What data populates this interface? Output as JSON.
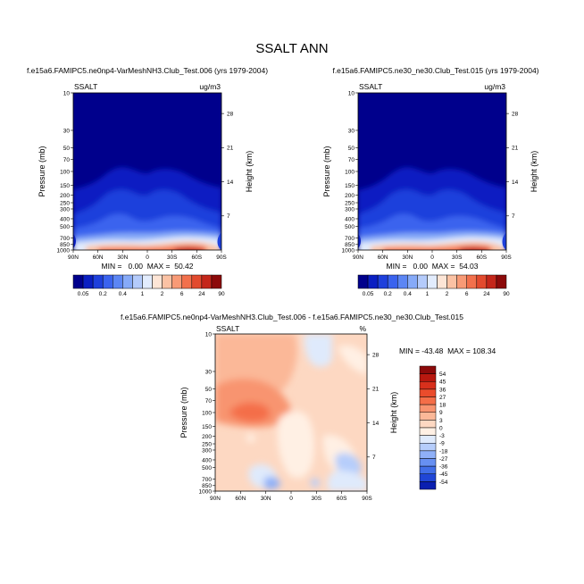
{
  "figure": {
    "title": "SSALT ANN"
  },
  "chart_data": [
    {
      "type": "heatmap",
      "title": "f.e15a6.FAMIPC5.ne0np4-VarMeshNH3.Club_Test.006 (yrs 1979-2004)",
      "variable": "SSALT",
      "units": "ug/m3",
      "ylabel": "Pressure (mb)",
      "ylabel_right": "Height (km)",
      "x_ticks": [
        "90N",
        "60N",
        "30N",
        "0",
        "30S",
        "60S",
        "90S"
      ],
      "y_ticks": [
        "10",
        "30",
        "50",
        "70",
        "100",
        "150",
        "200",
        "250",
        "300",
        "400",
        "500",
        "700",
        "850",
        "1000"
      ],
      "y_ticks_right": [
        "28",
        "21",
        "14",
        "7"
      ],
      "ylim": [
        1000,
        10
      ],
      "y_scale": "log",
      "stats": "MIN =   0.00  MAX =  50.42",
      "min": 0.0,
      "max": 50.42
    },
    {
      "type": "heatmap",
      "title": "f.e15a6.FAMIPC5.ne30_ne30.Club_Test.015 (yrs 1979-2004)",
      "variable": "SSALT",
      "units": "ug/m3",
      "ylabel": "Pressure (mb)",
      "ylabel_right": "Height (km)",
      "x_ticks": [
        "90N",
        "60N",
        "30N",
        "0",
        "30S",
        "60S",
        "90S"
      ],
      "y_ticks": [
        "10",
        "30",
        "50",
        "70",
        "100",
        "150",
        "200",
        "250",
        "300",
        "400",
        "500",
        "700",
        "850",
        "1000"
      ],
      "y_ticks_right": [
        "28",
        "21",
        "14",
        "7"
      ],
      "ylim": [
        1000,
        10
      ],
      "y_scale": "log",
      "stats": "MIN =   0.00  MAX =  54.03",
      "min": 0.0,
      "max": 54.03
    },
    {
      "type": "heatmap",
      "title": "f.e15a6.FAMIPC5.ne0np4-VarMeshNH3.Club_Test.006 - f.e15a6.FAMIPC5.ne30_ne30.Club_Test.015",
      "variable": "SSALT",
      "units": "%",
      "ylabel": "Pressure (mb)",
      "ylabel_right": "Height (km)",
      "x_ticks": [
        "90N",
        "60N",
        "30N",
        "0",
        "30S",
        "60S",
        "90S"
      ],
      "y_ticks": [
        "10",
        "30",
        "50",
        "70",
        "100",
        "150",
        "200",
        "250",
        "300",
        "400",
        "500",
        "700",
        "850",
        "1000"
      ],
      "y_ticks_right": [
        "28",
        "21",
        "14",
        "7"
      ],
      "ylim": [
        1000,
        10
      ],
      "y_scale": "log",
      "stats": "MIN = -43.48  MAX = 108.34",
      "min": -43.48,
      "max": 108.34
    }
  ],
  "colorbar_abs": {
    "labels": [
      "0.05",
      "0.2",
      "0.4",
      "1",
      "2",
      "6",
      "24",
      "90"
    ],
    "colors": [
      "#00008c",
      "#0a1fc2",
      "#1e40dc",
      "#3a63ee",
      "#5c86f4",
      "#86aaf8",
      "#b4cbfb",
      "#e2ecfd",
      "#fde5d6",
      "#fbc2a4",
      "#f89a76",
      "#f2704c",
      "#e24a2e",
      "#c4261a",
      "#8c0a0a"
    ]
  },
  "colorbar_diff": {
    "labels": [
      "54",
      "45",
      "36",
      "27",
      "18",
      "9",
      "3",
      "0",
      "-3",
      "-9",
      "-18",
      "-27",
      "-36",
      "-45",
      "-54"
    ],
    "colors": [
      "#8c0a0a",
      "#b8180f",
      "#d8301c",
      "#ea4c2c",
      "#f46e48",
      "#f89470",
      "#fbb898",
      "#fdd8c2",
      "#fff0e4",
      "#dfeafc",
      "#b6cdfb",
      "#8fb0f8",
      "#6790f2",
      "#416ee8",
      "#2046d6",
      "#0a1fb0"
    ]
  }
}
